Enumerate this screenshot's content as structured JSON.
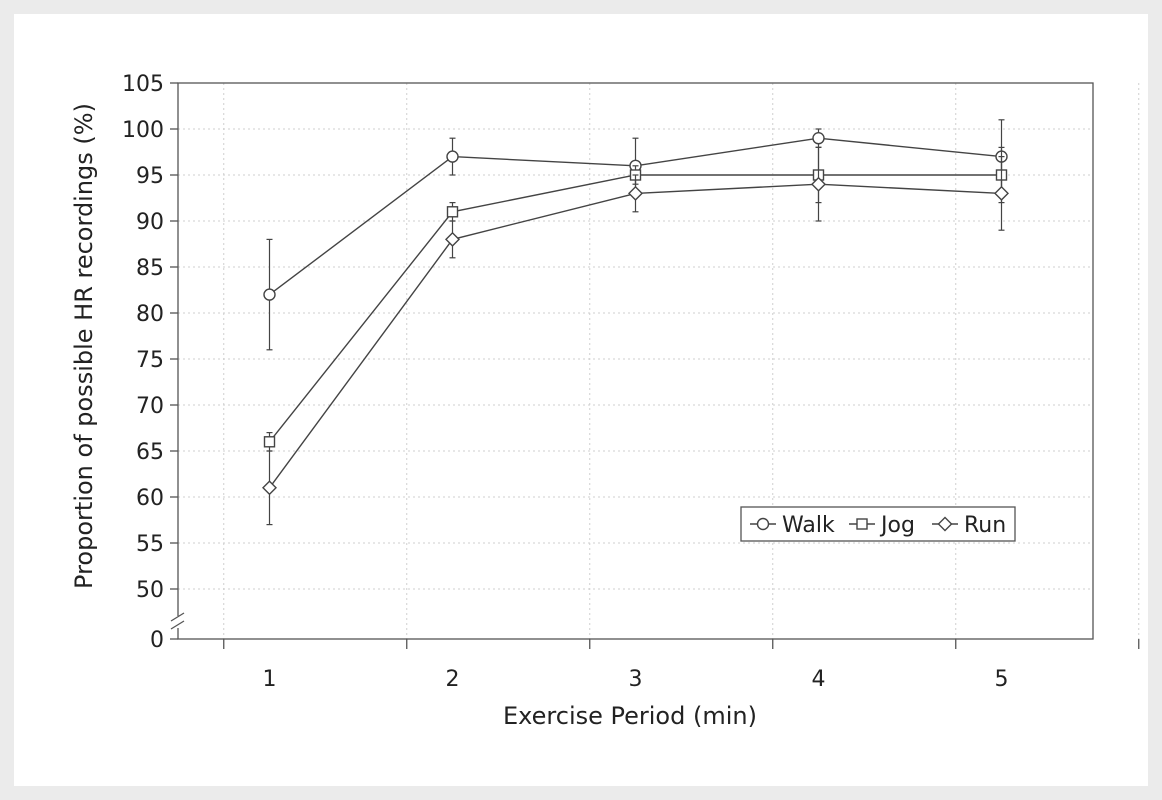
{
  "chart_data": {
    "type": "line",
    "xlabel": "Exercise Period (min)",
    "ylabel": "Proportion of possible HR recordings (%)",
    "x": [
      1,
      2,
      3,
      4,
      5
    ],
    "x_ticks": [
      "1",
      "2",
      "3",
      "4",
      "5"
    ],
    "xlim": [
      0.5,
      5.5
    ],
    "y_ticks": [
      "0",
      "50",
      "55",
      "60",
      "65",
      "70",
      "75",
      "80",
      "85",
      "90",
      "95",
      "100",
      "105"
    ],
    "ylim_upper": [
      47.5,
      105
    ],
    "y_axis_break": true,
    "grid": true,
    "legend_position": "lower-right",
    "series": [
      {
        "name": "Walk",
        "marker": "circle",
        "values": [
          82,
          97,
          96,
          99,
          97
        ],
        "error": [
          6,
          2,
          3,
          1,
          4
        ]
      },
      {
        "name": "Jog",
        "marker": "square",
        "values": [
          66,
          91,
          95,
          95,
          95
        ],
        "error": [
          1,
          1,
          1,
          3,
          3
        ]
      },
      {
        "name": "Run",
        "marker": "diamond",
        "values": [
          61,
          88,
          93,
          94,
          93
        ],
        "error": [
          4,
          2,
          2,
          4,
          4
        ]
      }
    ]
  }
}
